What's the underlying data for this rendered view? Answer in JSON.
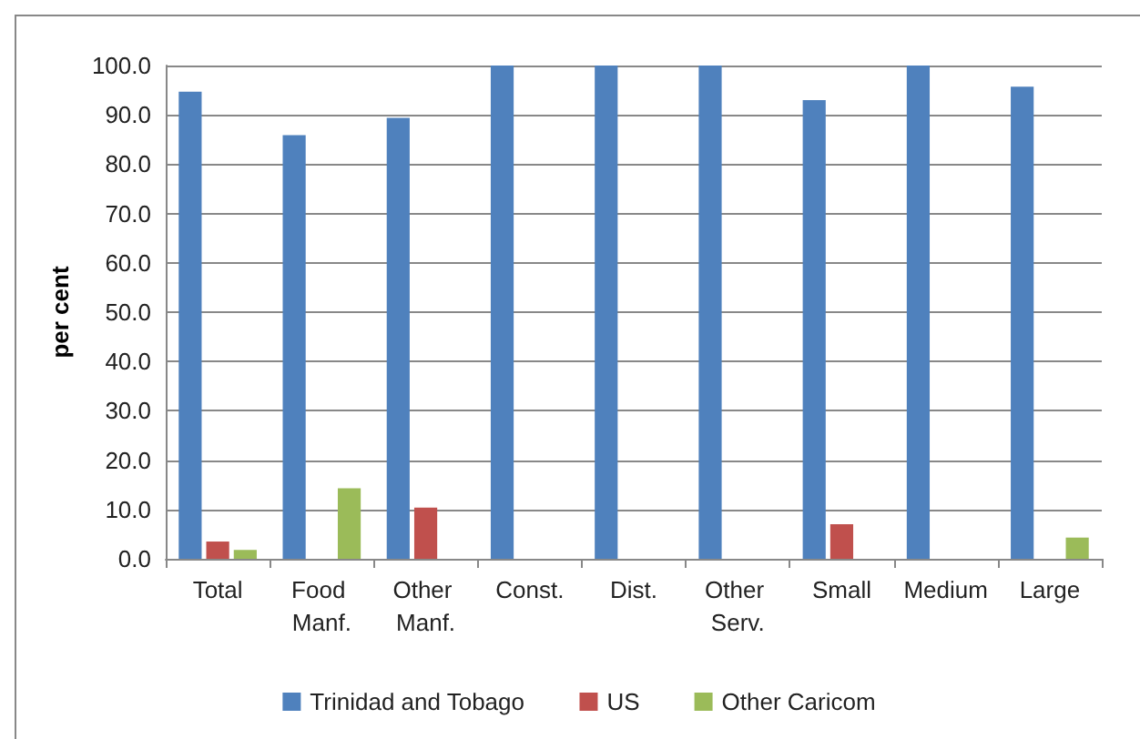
{
  "chart_data": {
    "type": "bar",
    "ylabel": "per cent",
    "categories": [
      "Total",
      "Food Manf.",
      "Other Manf.",
      "Const.",
      "Dist.",
      "Other Serv.",
      "Small",
      "Medium",
      "Large"
    ],
    "series": [
      {
        "name": "Trinidad and Tobago",
        "color": "#4f81bd",
        "values": [
          94.7,
          85.9,
          89.4,
          100,
          100,
          100,
          93.0,
          100,
          95.7
        ]
      },
      {
        "name": "US",
        "color": "#c0504d",
        "values": [
          3.5,
          0,
          10.4,
          0,
          0,
          0,
          7.0,
          0,
          0
        ]
      },
      {
        "name": "Other Caricom",
        "color": "#9bbb59",
        "values": [
          1.8,
          14.3,
          0,
          0,
          0,
          0,
          0,
          0,
          4.3
        ]
      }
    ],
    "ylim": [
      0,
      100
    ],
    "yticks": [
      {
        "value": 0,
        "label": "0.0"
      },
      {
        "value": 10,
        "label": "10.0"
      },
      {
        "value": 20,
        "label": "20.0"
      },
      {
        "value": 30,
        "label": "30.0"
      },
      {
        "value": 40,
        "label": "40.0"
      },
      {
        "value": 50,
        "label": "50.0"
      },
      {
        "value": 60,
        "label": "60.0"
      },
      {
        "value": 70,
        "label": "70.0"
      },
      {
        "value": 80,
        "label": "80.0"
      },
      {
        "value": 90,
        "label": "90.0"
      },
      {
        "value": 100,
        "label": "100.0"
      }
    ],
    "grid": "y",
    "legend": "bottom"
  }
}
